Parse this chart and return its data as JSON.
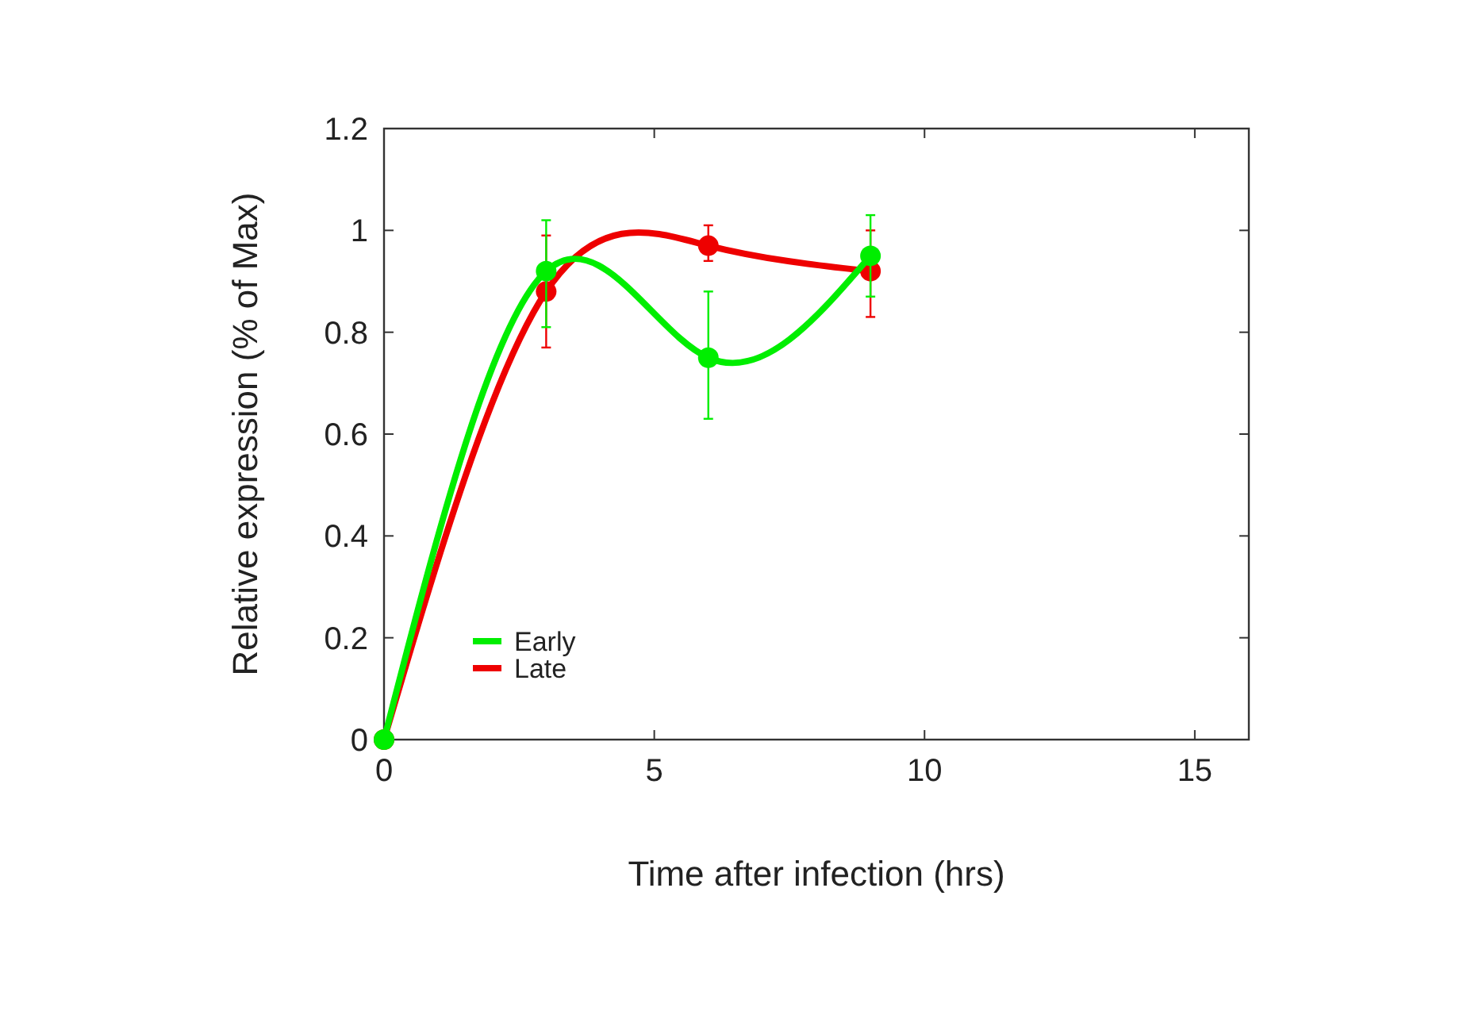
{
  "chart_data": {
    "type": "line",
    "xlabel": "Time after infection (hrs)",
    "ylabel": "Relative expression (% of Max)",
    "x": [
      0,
      3,
      6,
      9
    ],
    "series": [
      {
        "name": "Early",
        "color": "#00ee00",
        "values": [
          0,
          0.92,
          0.75,
          0.95
        ],
        "errors": [
          null,
          [
            0.81,
            1.02
          ],
          [
            0.63,
            0.88
          ],
          [
            0.87,
            1.03
          ]
        ]
      },
      {
        "name": "Late",
        "color": "#ee0000",
        "values": [
          0,
          0.88,
          0.97,
          0.92
        ],
        "errors": [
          null,
          [
            0.77,
            0.99
          ],
          [
            0.94,
            1.01
          ],
          [
            0.83,
            1.0
          ]
        ]
      }
    ],
    "xlim": [
      0,
      16
    ],
    "xticks": [
      0,
      5,
      10,
      15
    ],
    "ylim": [
      0,
      1.2
    ],
    "yticks": [
      0,
      0.2,
      0.4,
      0.6,
      0.8,
      1,
      1.2
    ],
    "grid": false,
    "legend": "bottom left",
    "marker": "circle",
    "line_style": "solid"
  }
}
